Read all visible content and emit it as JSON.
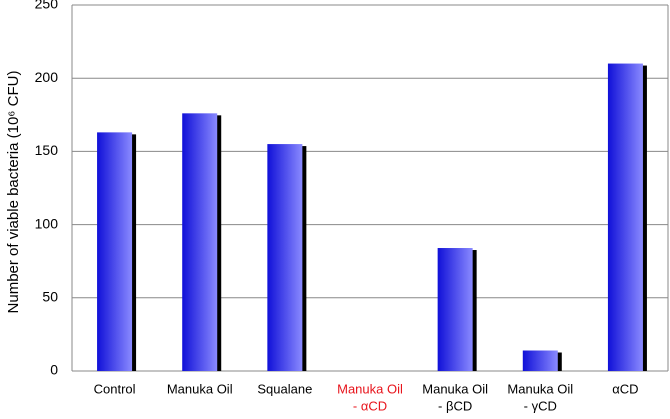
{
  "chart_data": {
    "type": "bar",
    "y_label": "Number of viable bacteria (10⁶ CFU)",
    "categories": [
      [
        "Control"
      ],
      [
        "Manuka Oil"
      ],
      [
        "Squalane"
      ],
      [
        "Manuka Oil",
        "- αCD"
      ],
      [
        "Manuka Oil",
        "- βCD"
      ],
      [
        "Manuka Oil",
        "- γCD"
      ],
      [
        "αCD"
      ]
    ],
    "category_label_colors": [
      "#000000",
      "#000000",
      "#000000",
      "#e8141c",
      "#000000",
      "#000000",
      "#000000"
    ],
    "values": [
      163,
      176,
      155,
      0,
      84,
      14,
      210
    ],
    "color": "#3a3af5",
    "ylim": [
      0,
      250
    ],
    "yticks": [
      0,
      50,
      100,
      150,
      200,
      250
    ],
    "grid": true
  }
}
